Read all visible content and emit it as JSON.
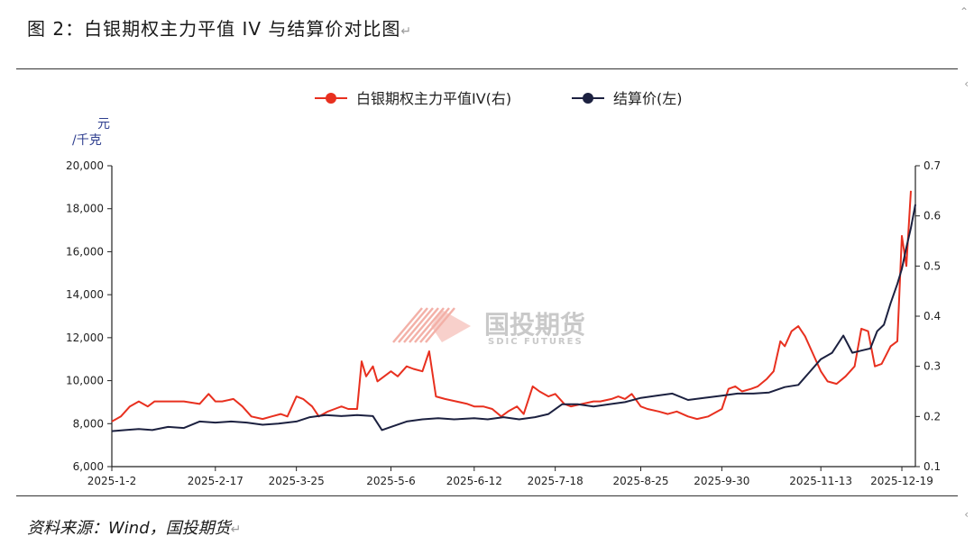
{
  "figure": {
    "title": "图 2：白银期权主力平值 IV 与结算价对比图",
    "source": "资料来源：Wind，国投期货",
    "return_mark": "↵"
  },
  "watermark": {
    "cn": "国投期货",
    "en": "SDIC FUTURES"
  },
  "colors": {
    "iv": "#e8301f",
    "price": "#1c2140",
    "watermark_cn": "#c9c9c9",
    "watermark_logo": "#f2a99f",
    "axis": "#222222",
    "unit": "#2f3f8f"
  },
  "chart_data": {
    "type": "line",
    "legend_position": "top-center",
    "grid": false,
    "y_left": {
      "unit_line1": "元",
      "unit_line2": "/千克",
      "range": [
        6000,
        20000
      ],
      "ticks": [
        "6,000",
        "8,000",
        "10,000",
        "12,000",
        "14,000",
        "16,000",
        "18,000",
        "20,000"
      ]
    },
    "y_right": {
      "range": [
        0.1,
        0.7
      ],
      "ticks": [
        "0.1",
        "0.2",
        "0.3",
        "0.4",
        "0.5",
        "0.6",
        "0.7"
      ]
    },
    "x_range": [
      "2025-01-02",
      "2025-12-25"
    ],
    "x_ticks": [
      "2025-1-2",
      "2025-2-17",
      "2025-3-25",
      "2025-5-6",
      "2025-6-12",
      "2025-7-18",
      "2025-8-25",
      "2025-9-30",
      "2025-11-13",
      "2025-12-19"
    ],
    "series": [
      {
        "name": "白银期权主力平值IV(右)",
        "axis": "right",
        "points": [
          [
            "2025-01-02",
            0.19
          ],
          [
            "2025-01-06",
            0.2
          ],
          [
            "2025-01-10",
            0.22
          ],
          [
            "2025-01-14",
            0.23
          ],
          [
            "2025-01-18",
            0.22
          ],
          [
            "2025-01-21",
            0.23
          ],
          [
            "2025-01-27",
            0.23
          ],
          [
            "2025-02-03",
            0.23
          ],
          [
            "2025-02-10",
            0.225
          ],
          [
            "2025-02-14",
            0.245
          ],
          [
            "2025-02-17",
            0.23
          ],
          [
            "2025-02-20",
            0.23
          ],
          [
            "2025-02-25",
            0.235
          ],
          [
            "2025-03-01",
            0.22
          ],
          [
            "2025-03-05",
            0.2
          ],
          [
            "2025-03-10",
            0.195
          ],
          [
            "2025-03-14",
            0.2
          ],
          [
            "2025-03-18",
            0.205
          ],
          [
            "2025-03-21",
            0.2
          ],
          [
            "2025-03-25",
            0.24
          ],
          [
            "2025-03-28",
            0.235
          ],
          [
            "2025-04-01",
            0.22
          ],
          [
            "2025-04-04",
            0.2
          ],
          [
            "2025-04-08",
            0.21
          ],
          [
            "2025-04-11",
            0.215
          ],
          [
            "2025-04-14",
            0.22
          ],
          [
            "2025-04-17",
            0.215
          ],
          [
            "2025-04-21",
            0.215
          ],
          [
            "2025-04-23",
            0.31
          ],
          [
            "2025-04-25",
            0.28
          ],
          [
            "2025-04-28",
            0.3
          ],
          [
            "2025-04-30",
            0.27
          ],
          [
            "2025-05-06",
            0.29
          ],
          [
            "2025-05-09",
            0.28
          ],
          [
            "2025-05-13",
            0.3
          ],
          [
            "2025-05-16",
            0.295
          ],
          [
            "2025-05-20",
            0.29
          ],
          [
            "2025-05-23",
            0.33
          ],
          [
            "2025-05-26",
            0.24
          ],
          [
            "2025-05-30",
            0.235
          ],
          [
            "2025-06-04",
            0.23
          ],
          [
            "2025-06-09",
            0.225
          ],
          [
            "2025-06-12",
            0.22
          ],
          [
            "2025-06-16",
            0.22
          ],
          [
            "2025-06-20",
            0.215
          ],
          [
            "2025-06-24",
            0.2
          ],
          [
            "2025-06-27",
            0.21
          ],
          [
            "2025-07-01",
            0.22
          ],
          [
            "2025-07-04",
            0.205
          ],
          [
            "2025-07-08",
            0.26
          ],
          [
            "2025-07-11",
            0.25
          ],
          [
            "2025-07-15",
            0.24
          ],
          [
            "2025-07-18",
            0.245
          ],
          [
            "2025-07-22",
            0.225
          ],
          [
            "2025-07-25",
            0.22
          ],
          [
            "2025-07-30",
            0.225
          ],
          [
            "2025-08-04",
            0.23
          ],
          [
            "2025-08-07",
            0.23
          ],
          [
            "2025-08-12",
            0.235
          ],
          [
            "2025-08-15",
            0.24
          ],
          [
            "2025-08-18",
            0.235
          ],
          [
            "2025-08-21",
            0.245
          ],
          [
            "2025-08-25",
            0.22
          ],
          [
            "2025-08-28",
            0.215
          ],
          [
            "2025-09-02",
            0.21
          ],
          [
            "2025-09-06",
            0.205
          ],
          [
            "2025-09-10",
            0.21
          ],
          [
            "2025-09-15",
            0.2
          ],
          [
            "2025-09-19",
            0.195
          ],
          [
            "2025-09-24",
            0.2
          ],
          [
            "2025-09-30",
            0.215
          ],
          [
            "2025-10-03",
            0.255
          ],
          [
            "2025-10-06",
            0.26
          ],
          [
            "2025-10-09",
            0.25
          ],
          [
            "2025-10-13",
            0.255
          ],
          [
            "2025-10-16",
            0.26
          ],
          [
            "2025-10-20",
            0.275
          ],
          [
            "2025-10-23",
            0.29
          ],
          [
            "2025-10-26",
            0.35
          ],
          [
            "2025-10-28",
            0.34
          ],
          [
            "2025-10-31",
            0.37
          ],
          [
            "2025-11-03",
            0.38
          ],
          [
            "2025-11-06",
            0.36
          ],
          [
            "2025-11-09",
            0.33
          ],
          [
            "2025-11-11",
            0.31
          ],
          [
            "2025-11-13",
            0.29
          ],
          [
            "2025-11-16",
            0.27
          ],
          [
            "2025-11-20",
            0.265
          ],
          [
            "2025-11-24",
            0.28
          ],
          [
            "2025-11-28",
            0.3
          ],
          [
            "2025-12-01",
            0.375
          ],
          [
            "2025-12-04",
            0.37
          ],
          [
            "2025-12-07",
            0.3
          ],
          [
            "2025-12-10",
            0.305
          ],
          [
            "2025-12-14",
            0.34
          ],
          [
            "2025-12-17",
            0.35
          ],
          [
            "2025-12-19",
            0.56
          ],
          [
            "2025-12-21",
            0.5
          ],
          [
            "2025-12-23",
            0.65
          ]
        ]
      },
      {
        "name": "结算价(左)",
        "axis": "left",
        "points": [
          [
            "2025-01-02",
            7650
          ],
          [
            "2025-01-08",
            7700
          ],
          [
            "2025-01-14",
            7750
          ],
          [
            "2025-01-20",
            7700
          ],
          [
            "2025-01-27",
            7850
          ],
          [
            "2025-02-03",
            7800
          ],
          [
            "2025-02-10",
            8100
          ],
          [
            "2025-02-17",
            8050
          ],
          [
            "2025-02-24",
            8100
          ],
          [
            "2025-03-03",
            8050
          ],
          [
            "2025-03-10",
            7950
          ],
          [
            "2025-03-17",
            8000
          ],
          [
            "2025-03-25",
            8100
          ],
          [
            "2025-03-31",
            8300
          ],
          [
            "2025-04-07",
            8400
          ],
          [
            "2025-04-14",
            8350
          ],
          [
            "2025-04-21",
            8400
          ],
          [
            "2025-04-28",
            8350
          ],
          [
            "2025-05-02",
            7700
          ],
          [
            "2025-05-06",
            7850
          ],
          [
            "2025-05-13",
            8100
          ],
          [
            "2025-05-20",
            8200
          ],
          [
            "2025-05-27",
            8250
          ],
          [
            "2025-06-03",
            8200
          ],
          [
            "2025-06-12",
            8250
          ],
          [
            "2025-06-18",
            8200
          ],
          [
            "2025-06-25",
            8300
          ],
          [
            "2025-07-02",
            8200
          ],
          [
            "2025-07-09",
            8300
          ],
          [
            "2025-07-15",
            8450
          ],
          [
            "2025-07-21",
            8900
          ],
          [
            "2025-07-28",
            8900
          ],
          [
            "2025-08-04",
            8800
          ],
          [
            "2025-08-11",
            8900
          ],
          [
            "2025-08-18",
            9000
          ],
          [
            "2025-08-25",
            9200
          ],
          [
            "2025-09-01",
            9300
          ],
          [
            "2025-09-08",
            9400
          ],
          [
            "2025-09-15",
            9100
          ],
          [
            "2025-09-22",
            9200
          ],
          [
            "2025-09-30",
            9300
          ],
          [
            "2025-10-07",
            9400
          ],
          [
            "2025-10-14",
            9400
          ],
          [
            "2025-10-21",
            9450
          ],
          [
            "2025-10-28",
            9700
          ],
          [
            "2025-11-03",
            9800
          ],
          [
            "2025-11-08",
            10400
          ],
          [
            "2025-11-13",
            11000
          ],
          [
            "2025-11-18",
            11300
          ],
          [
            "2025-11-23",
            12100
          ],
          [
            "2025-11-27",
            11300
          ],
          [
            "2025-12-01",
            11400
          ],
          [
            "2025-12-05",
            11500
          ],
          [
            "2025-12-08",
            12300
          ],
          [
            "2025-12-11",
            12600
          ],
          [
            "2025-12-14",
            13600
          ],
          [
            "2025-12-17",
            14500
          ],
          [
            "2025-12-19",
            15200
          ],
          [
            "2025-12-21",
            16200
          ],
          [
            "2025-12-23",
            17100
          ],
          [
            "2025-12-25",
            18200
          ]
        ]
      }
    ]
  }
}
